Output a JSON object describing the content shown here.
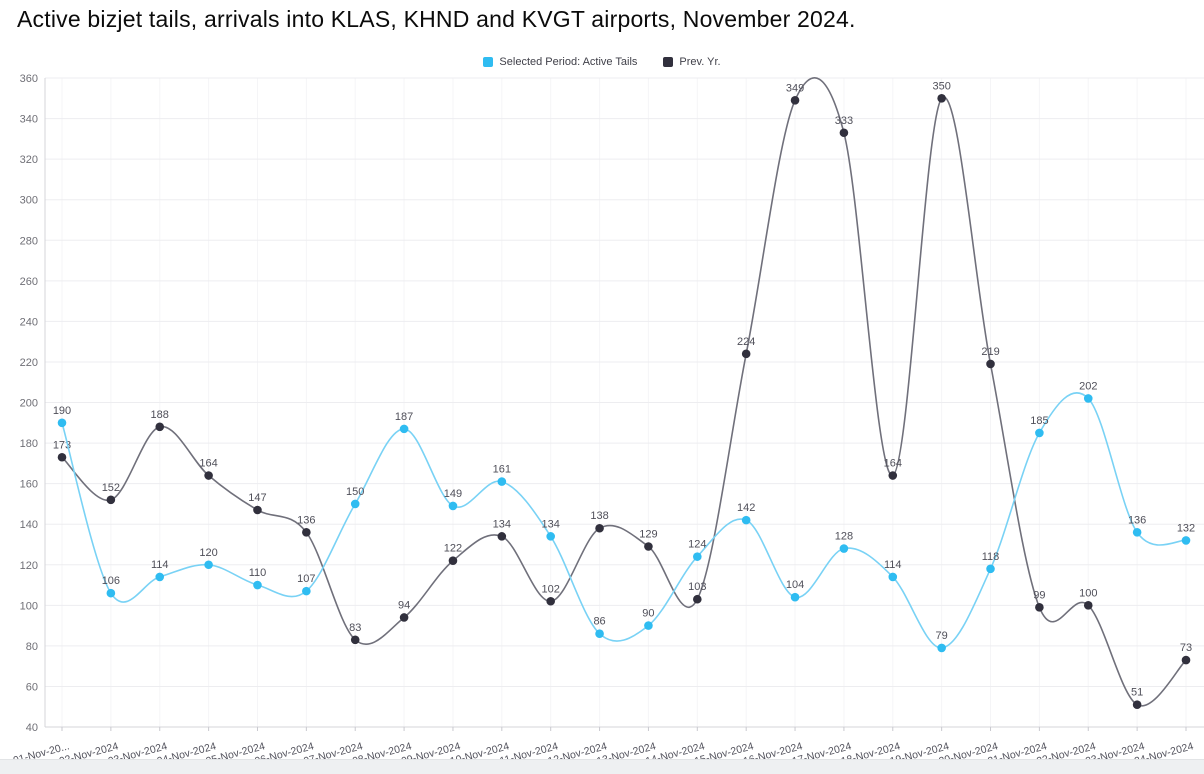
{
  "page": {
    "title": "Active bizjet tails, arrivals into KLAS, KHND and KVGT airports, November 2024."
  },
  "legend": {
    "items": [
      {
        "label": "Selected Period: Active Tails",
        "color": "#2fbcf1"
      },
      {
        "label": "Prev. Yr.",
        "color": "#31303d"
      }
    ]
  },
  "chart_data": {
    "type": "line",
    "title": "Active bizjet tails, arrivals into KLAS, KHND and KVGT airports, November 2024.",
    "xlabel": "",
    "ylabel": "",
    "ylim": [
      40,
      360
    ],
    "y_tick_step": 20,
    "y_ticks": [
      40,
      60,
      80,
      100,
      120,
      140,
      160,
      180,
      200,
      220,
      240,
      260,
      280,
      300,
      320,
      340,
      360
    ],
    "grid": true,
    "legend_position": "top",
    "categories": [
      "01-Nov-20...",
      "02-Nov-2024",
      "03-Nov-2024",
      "04-Nov-2024",
      "05-Nov-2024",
      "06-Nov-2024",
      "07-Nov-2024",
      "08-Nov-2024",
      "09-Nov-2024",
      "10-Nov-2024",
      "11-Nov-2024",
      "12-Nov-2024",
      "13-Nov-2024",
      "14-Nov-2024",
      "15-Nov-2024",
      "16-Nov-2024",
      "17-Nov-2024",
      "18-Nov-2024",
      "19-Nov-2024",
      "20-Nov-2024",
      "21-Nov-2024",
      "22-Nov-2024",
      "23-Nov-2024",
      "24-Nov-2024"
    ],
    "series": [
      {
        "name": "Selected Period: Active Tails",
        "marker_color": "#2fbcf1",
        "line_color": "#79d2f5",
        "values": [
          190,
          106,
          114,
          120,
          110,
          107,
          150,
          187,
          149,
          161,
          134,
          86,
          90,
          124,
          142,
          104,
          128,
          114,
          79,
          118,
          185,
          202,
          136,
          132
        ]
      },
      {
        "name": "Prev. Yr.",
        "marker_color": "#31303d",
        "line_color": "#70707b",
        "values": [
          173,
          152,
          188,
          164,
          147,
          136,
          83,
          94,
          122,
          134,
          102,
          138,
          129,
          103,
          224,
          349,
          333,
          164,
          350,
          219,
          99,
          100,
          51,
          73
        ]
      }
    ],
    "colors": {
      "grid_h": "#ededf0",
      "grid_v": "#f5f5f7",
      "axis": "#d4d4d9",
      "tick": "#c9c9cf",
      "y_label": "#6f6f76",
      "x_label": "#54545e",
      "value_label": "#4f4f59"
    }
  }
}
